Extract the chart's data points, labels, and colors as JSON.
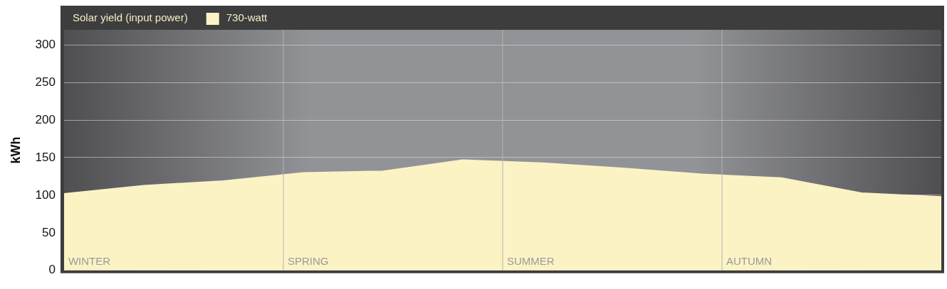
{
  "chart_data": {
    "type": "area",
    "ylabel": "kWh",
    "legend_title": "Solar yield (input power)",
    "legend": "top left",
    "categories": [
      null,
      null,
      null,
      null,
      null,
      null,
      null,
      null,
      null,
      null,
      null,
      null
    ],
    "series": [
      {
        "name": "730-watt",
        "color": "#fcf3c5",
        "values": [
          102,
          113,
          119,
          130,
          132,
          147,
          143,
          136,
          128,
          123,
          103,
          98
        ]
      }
    ],
    "ylim": [
      0,
      320
    ],
    "yticks": [
      0,
      50,
      100,
      150,
      200,
      250,
      300
    ],
    "tick_labels": "y",
    "grid": "y",
    "annotations": [
      "WINTER",
      "SPRING",
      "SUMMER",
      "AUTUMN"
    ]
  }
}
